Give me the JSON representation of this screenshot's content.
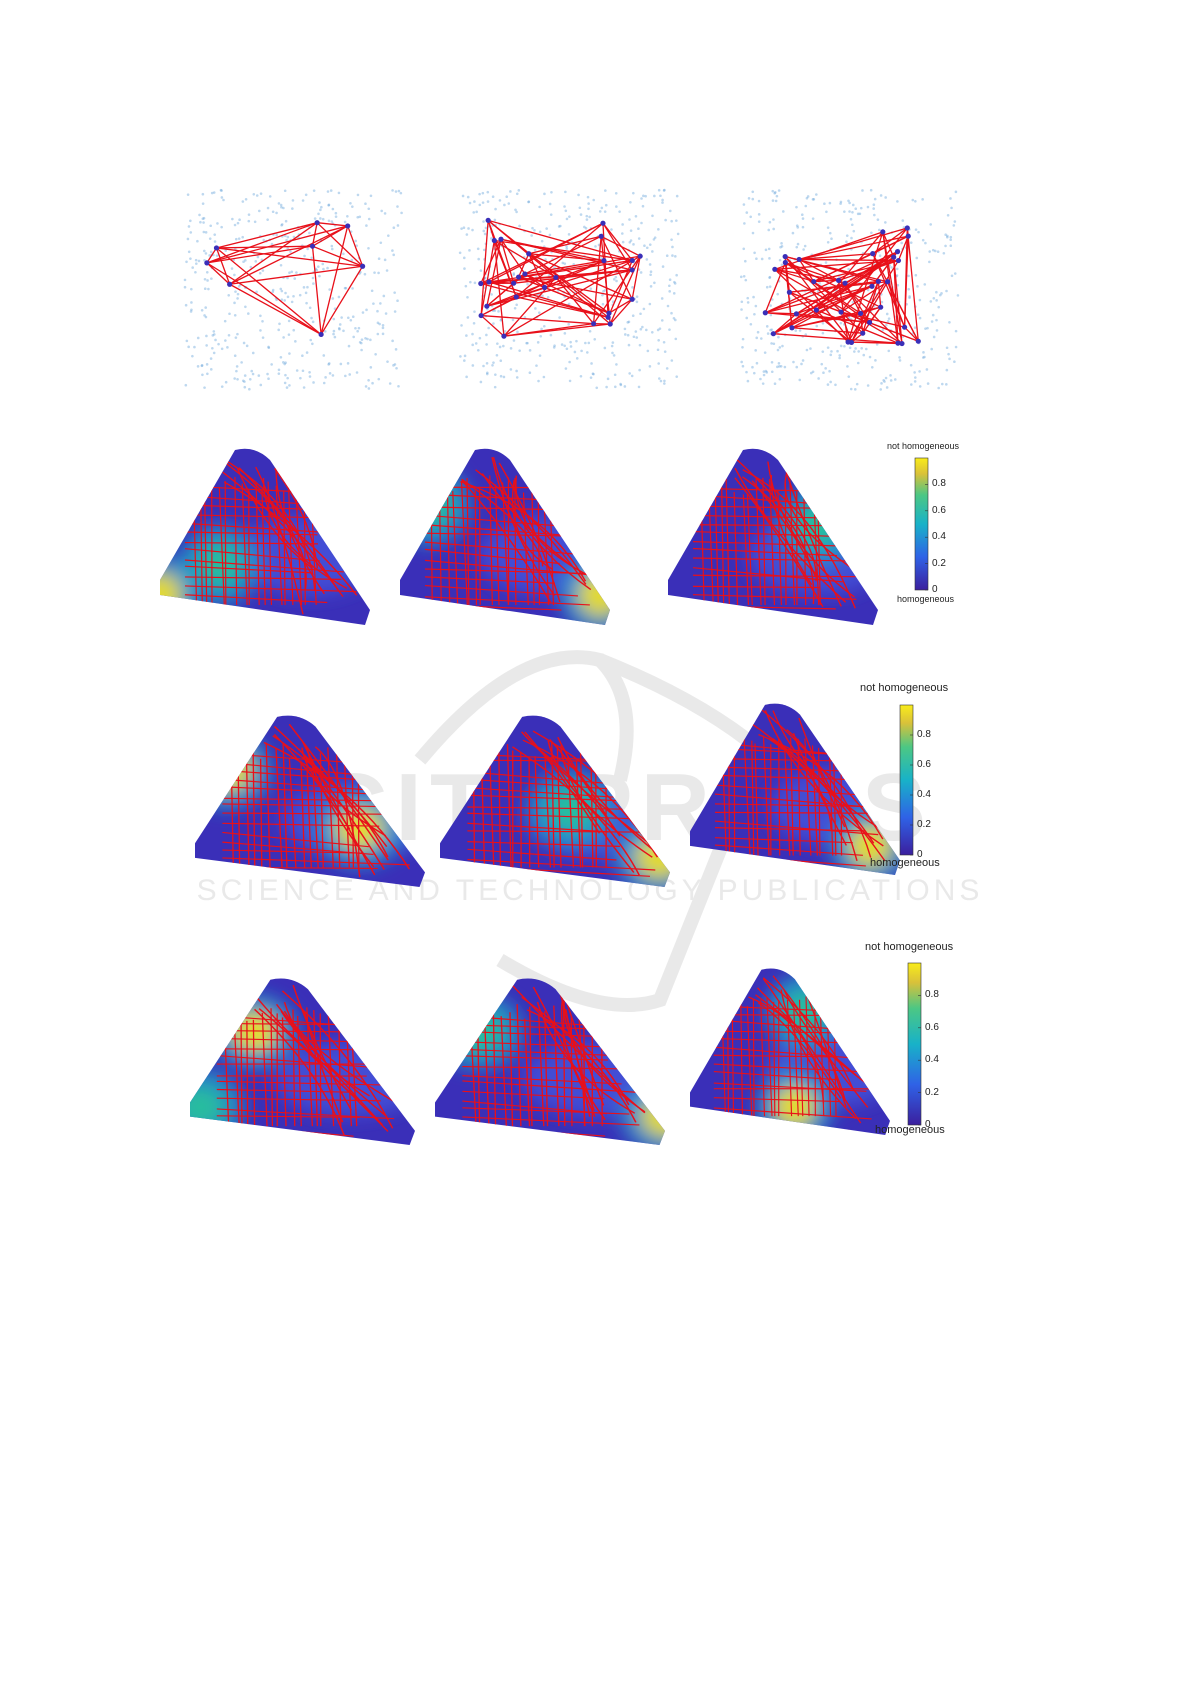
{
  "figure": {
    "watermark": "SCITEPRESS",
    "watermark_sub": "SCIENCE AND TECHNOLOGY PUBLICATIONS",
    "colors": {
      "edge": "#e8101a",
      "point": "#6fa8dc",
      "low": "#3a2fb8",
      "mid": "#1fa3c9",
      "teal": "#26c29a",
      "high": "#f7e21d"
    },
    "rows": [
      {
        "row": "networks",
        "panels": [
          "network-sparse",
          "network-medium",
          "network-dense"
        ]
      },
      {
        "row": "heatmaps-1",
        "panels": [
          "heatmap-1a",
          "heatmap-1b",
          "heatmap-1c"
        ]
      },
      {
        "row": "heatmaps-2",
        "panels": [
          "heatmap-2a",
          "heatmap-2b",
          "heatmap-2c"
        ]
      },
      {
        "row": "heatmaps-3",
        "panels": [
          "heatmap-3a",
          "heatmap-3b",
          "heatmap-3c"
        ]
      }
    ],
    "colorbars": [
      {
        "top_label": "not homogeneous",
        "bottom_label": "homogeneous",
        "ticks": [
          "0.8",
          "0.6",
          "0.4",
          "0.2",
          "0"
        ]
      },
      {
        "top_label": "not homogeneous",
        "bottom_label": "homogeneous",
        "ticks": [
          "0.8",
          "0.6",
          "0.4",
          "0.2",
          "0"
        ]
      },
      {
        "top_label": "not homogeneous",
        "bottom_label": "homogeneous",
        "ticks": [
          "0.8",
          "0.6",
          "0.4",
          "0.2",
          "0"
        ]
      }
    ]
  }
}
